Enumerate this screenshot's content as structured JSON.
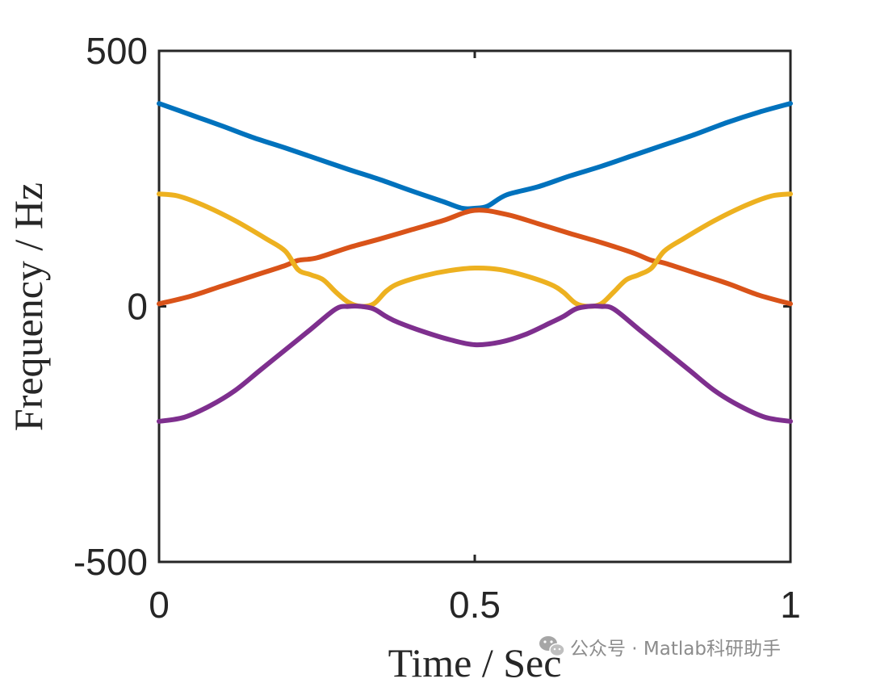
{
  "chart_data": {
    "type": "line",
    "xlabel": "Time / Sec",
    "ylabel": "Frequency / Hz",
    "xlim": [
      0,
      1
    ],
    "ylim": [
      -500,
      500
    ],
    "xticks": [
      0,
      0.5,
      1
    ],
    "xtick_labels": [
      "0",
      "0.5",
      "1"
    ],
    "yticks": [
      -500,
      0,
      500
    ],
    "ytick_labels": [
      "-500",
      "0",
      "500"
    ],
    "grid": false,
    "series": [
      {
        "color": "#0072BD",
        "x": [
          0,
          0.05,
          0.1,
          0.15,
          0.2,
          0.25,
          0.3,
          0.35,
          0.4,
          0.45,
          0.48,
          0.5,
          0.52,
          0.55,
          0.6,
          0.65,
          0.7,
          0.75,
          0.8,
          0.85,
          0.9,
          0.95,
          1
        ],
        "y": [
          397,
          375,
          353,
          330,
          310,
          289,
          268,
          248,
          226,
          205,
          192,
          192,
          196,
          218,
          234,
          255,
          274,
          295,
          316,
          337,
          360,
          380,
          397
        ]
      },
      {
        "color": "#D95319",
        "x": [
          0,
          0.05,
          0.1,
          0.15,
          0.2,
          0.22,
          0.25,
          0.3,
          0.35,
          0.4,
          0.45,
          0.5,
          0.55,
          0.6,
          0.65,
          0.7,
          0.75,
          0.78,
          0.8,
          0.85,
          0.9,
          0.95,
          1
        ],
        "y": [
          5,
          20,
          40,
          60,
          80,
          90,
          95,
          115,
          132,
          150,
          168,
          188,
          180,
          162,
          143,
          125,
          105,
          90,
          85,
          65,
          45,
          22,
          5
        ]
      },
      {
        "color": "#EDB120",
        "x": [
          0,
          0.03,
          0.07,
          0.12,
          0.17,
          0.2,
          0.22,
          0.24,
          0.26,
          0.28,
          0.3,
          0.32,
          0.34,
          0.36,
          0.38,
          0.42,
          0.46,
          0.5,
          0.54,
          0.58,
          0.62,
          0.64,
          0.66,
          0.68,
          0.7,
          0.72,
          0.74,
          0.76,
          0.78,
          0.8,
          0.83,
          0.88,
          0.93,
          0.97,
          1
        ],
        "y": [
          220,
          216,
          198,
          168,
          132,
          108,
          72,
          62,
          52,
          28,
          8,
          0,
          5,
          30,
          45,
          60,
          70,
          75,
          72,
          60,
          43,
          28,
          6,
          0,
          5,
          28,
          52,
          62,
          75,
          108,
          132,
          168,
          198,
          216,
          220
        ]
      },
      {
        "color": "#7E2F8E",
        "x": [
          0,
          0.04,
          0.08,
          0.12,
          0.16,
          0.2,
          0.24,
          0.28,
          0.3,
          0.32,
          0.34,
          0.36,
          0.38,
          0.42,
          0.46,
          0.5,
          0.54,
          0.58,
          0.62,
          0.64,
          0.66,
          0.68,
          0.7,
          0.72,
          0.76,
          0.8,
          0.84,
          0.88,
          0.92,
          0.96,
          1
        ],
        "y": [
          -225,
          -217,
          -195,
          -165,
          -125,
          -85,
          -45,
          -5,
          0,
          0,
          -5,
          -20,
          -32,
          -50,
          -65,
          -75,
          -70,
          -55,
          -32,
          -20,
          -5,
          0,
          0,
          -5,
          -45,
          -85,
          -125,
          -165,
          -195,
          -217,
          -225
        ]
      }
    ]
  },
  "watermark": {
    "icon": "wechat-icon",
    "text": "公众号 · Matlab科研助手"
  }
}
